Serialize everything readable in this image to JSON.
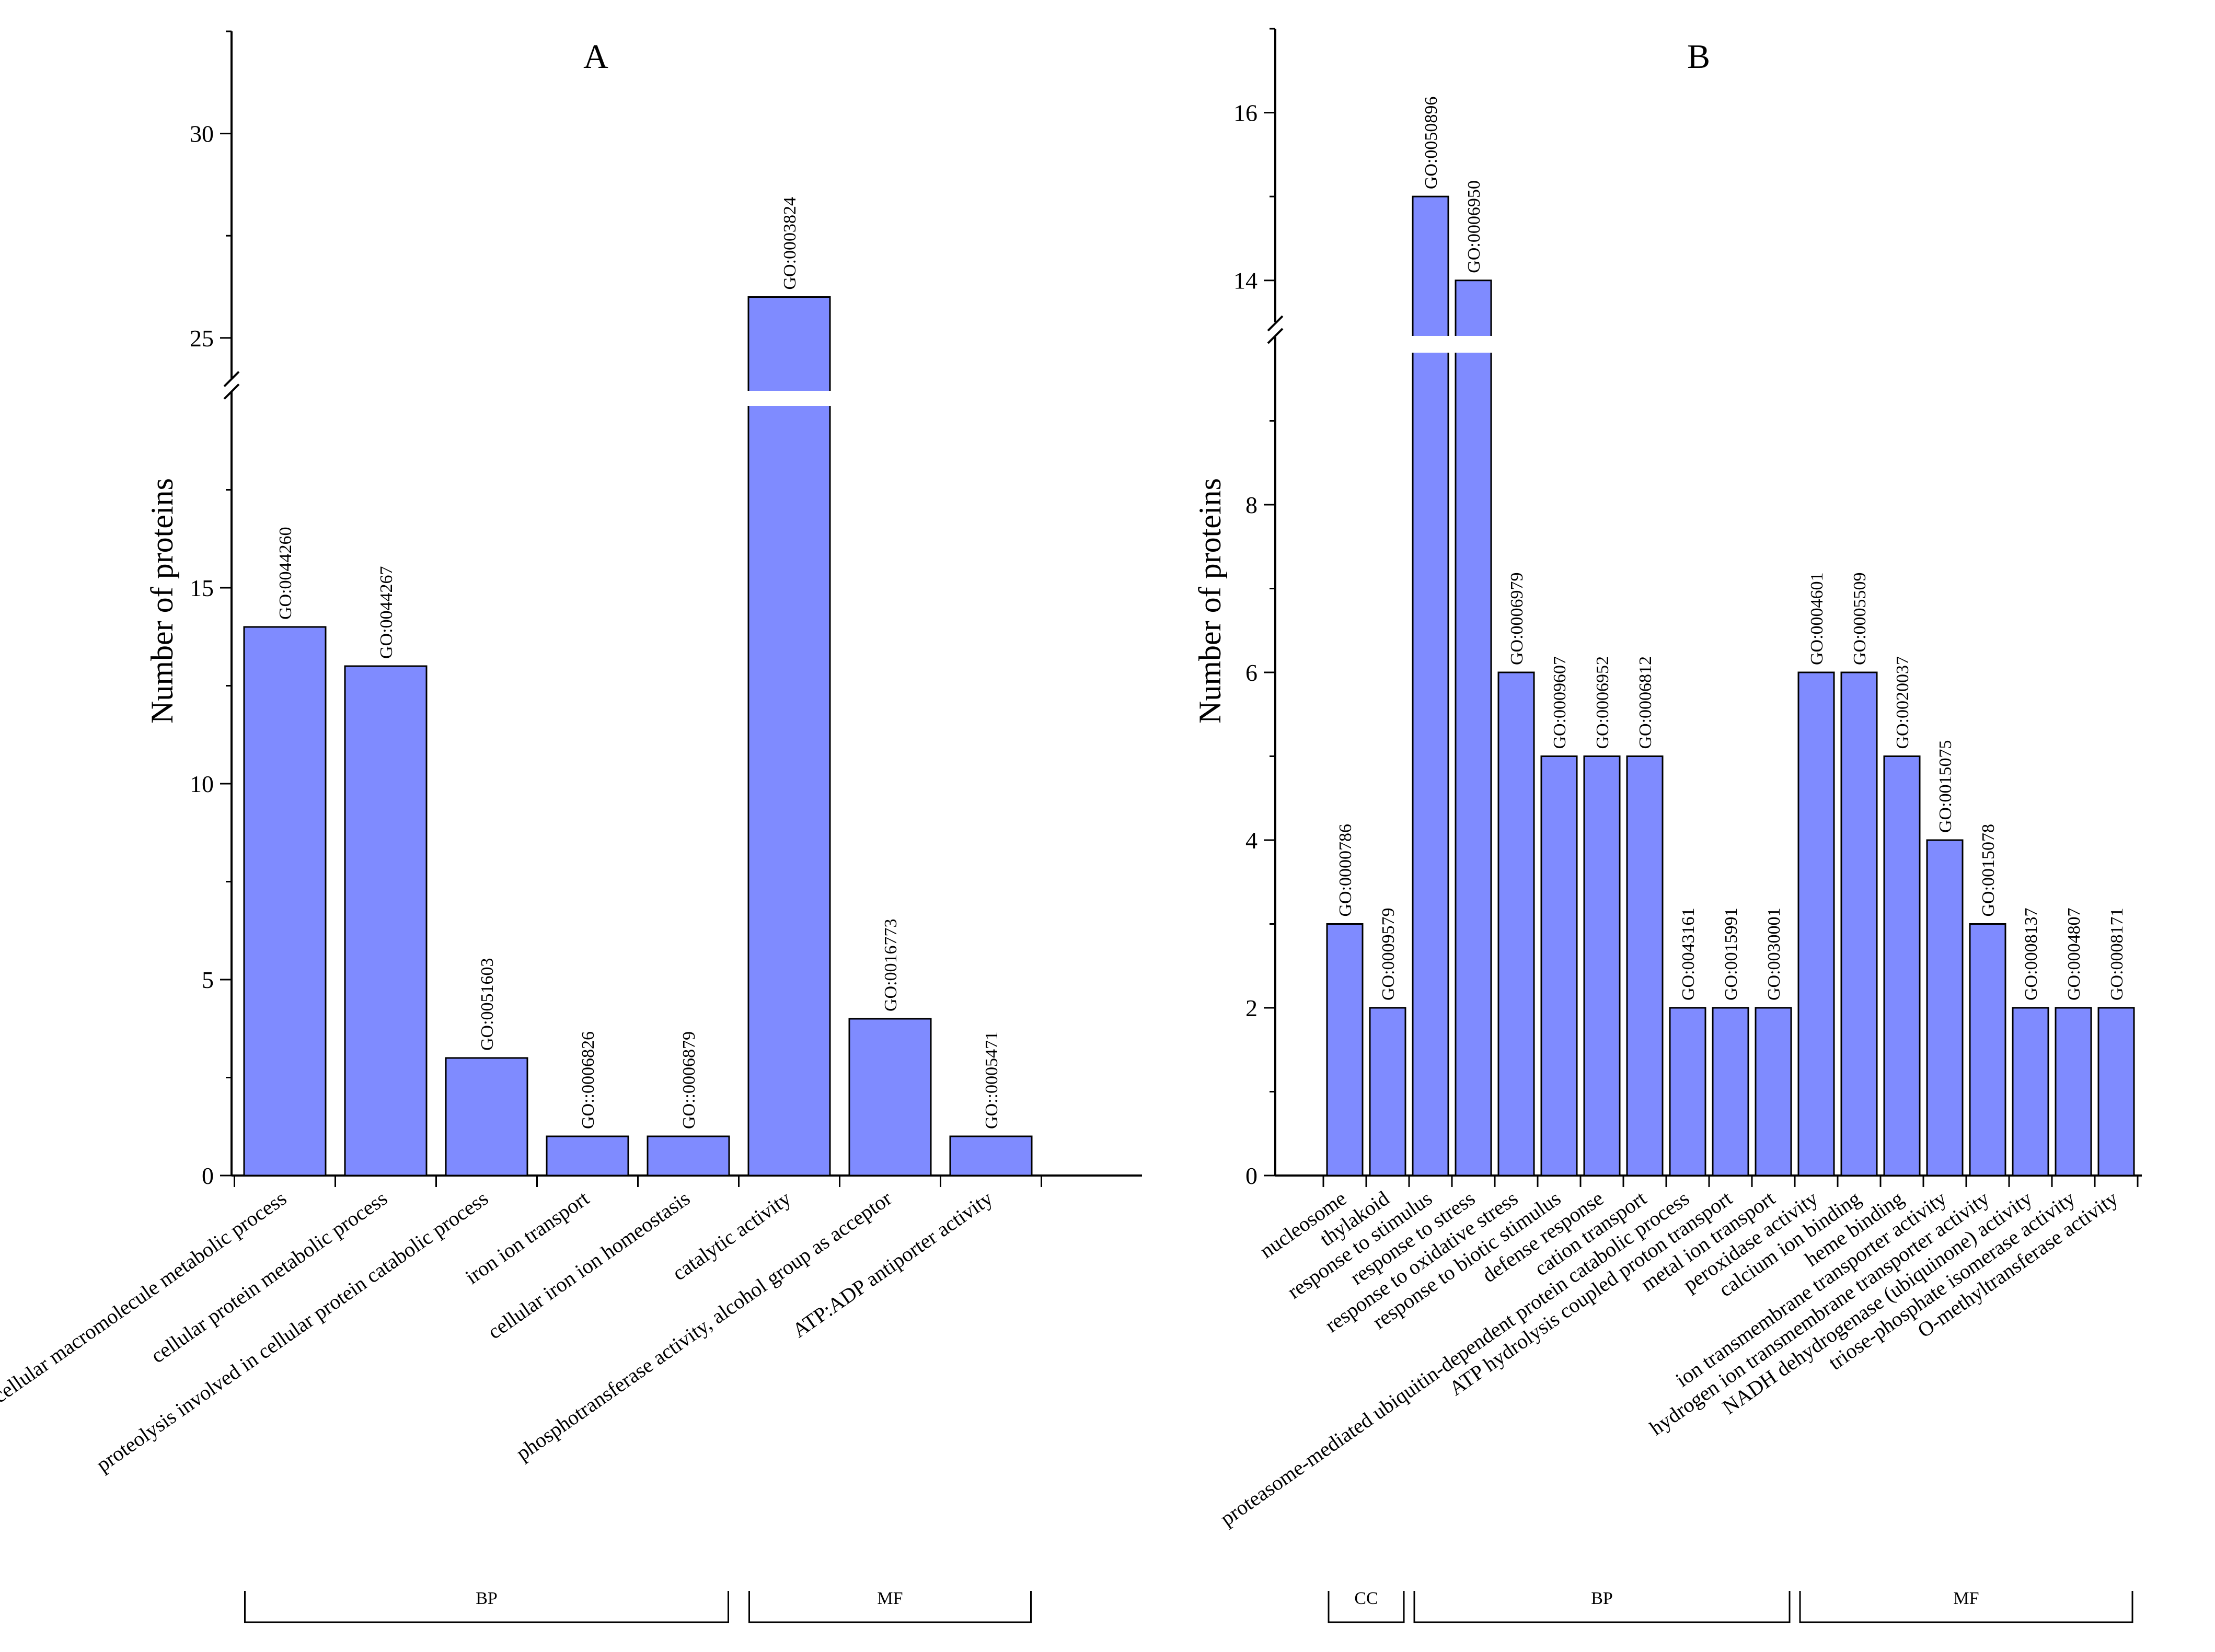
{
  "chart_data": [
    {
      "panel": "A",
      "type": "bar",
      "title": "A",
      "ylabel": "Number of  proteins",
      "xlabel": "",
      "ylim_lower": [
        0,
        20
      ],
      "ylim_upper": [
        24,
        32.5
      ],
      "axis_break": true,
      "yticks": [
        0,
        5,
        10,
        15,
        25,
        30
      ],
      "categories": [
        "cellular macromolecule metabolic process",
        "cellular protein metabolic process",
        "proteolysis involved in cellular protein catabolic process",
        "iron ion transport",
        "cellular iron ion homeostasis",
        "catalytic activity",
        "phosphotransferase activity, alcohol group as acceptor",
        "ATP:ADP antiporter activity"
      ],
      "go_ids": [
        "GO:0044260",
        "GO:0044267",
        "GO:0051603",
        "GO::0006826",
        "GO::0006879",
        "GO:0003824",
        "GO:0016773",
        "GO::0005471"
      ],
      "values": [
        14,
        13,
        3,
        1,
        1,
        26,
        4,
        1
      ],
      "groups": [
        {
          "name": "BP",
          "start": 0,
          "end": 4
        },
        {
          "name": "MF",
          "start": 5,
          "end": 7
        }
      ]
    },
    {
      "panel": "B",
      "type": "bar",
      "title": "B",
      "ylabel": "Number of proteins",
      "xlabel": "",
      "ylim_lower": [
        0,
        10
      ],
      "ylim_upper": [
        13.5,
        17
      ],
      "axis_break": true,
      "yticks": [
        0,
        2,
        4,
        6,
        8,
        14,
        16
      ],
      "categories": [
        "nucleosome",
        "thylakoid",
        "response to stimulus",
        "response to stress",
        "response to oxidative stress",
        "response to biotic stimulus",
        "defense response",
        "cation transport",
        "proteasome-mediated ubiquitin-dependent protein catabolic process",
        "ATP hydrolysis coupled proton transport",
        "metal ion transport",
        "peroxidase activity",
        "calcium ion binding",
        "heme binding",
        "ion transmembrane transporter activity",
        "hydrogen ion transmembrane transporter activity",
        "NADH dehydrogenase (ubiquinone) activity",
        "triose-phosphate isomerase activity",
        "O-methyltransferase activity"
      ],
      "go_ids": [
        "GO:0000786",
        "GO:0009579",
        "GO:0050896",
        "GO:0006950",
        "GO:0006979",
        "GO:0009607",
        "GO:0006952",
        "GO:0006812",
        "GO:0043161",
        "GO:0015991",
        "GO:0030001",
        "GO:0004601",
        "GO:0005509",
        "GO:0020037",
        "GO:0015075",
        "GO:0015078",
        "GO:0008137",
        "GO:0004807",
        "GO:0008171"
      ],
      "values": [
        3,
        2,
        15,
        14,
        6,
        5,
        5,
        5,
        2,
        2,
        2,
        6,
        6,
        5,
        4,
        3,
        2,
        2,
        2
      ],
      "groups": [
        {
          "name": "CC",
          "start": 0,
          "end": 1
        },
        {
          "name": "BP",
          "start": 2,
          "end": 10
        },
        {
          "name": "MF",
          "start": 11,
          "end": 18
        }
      ]
    }
  ]
}
